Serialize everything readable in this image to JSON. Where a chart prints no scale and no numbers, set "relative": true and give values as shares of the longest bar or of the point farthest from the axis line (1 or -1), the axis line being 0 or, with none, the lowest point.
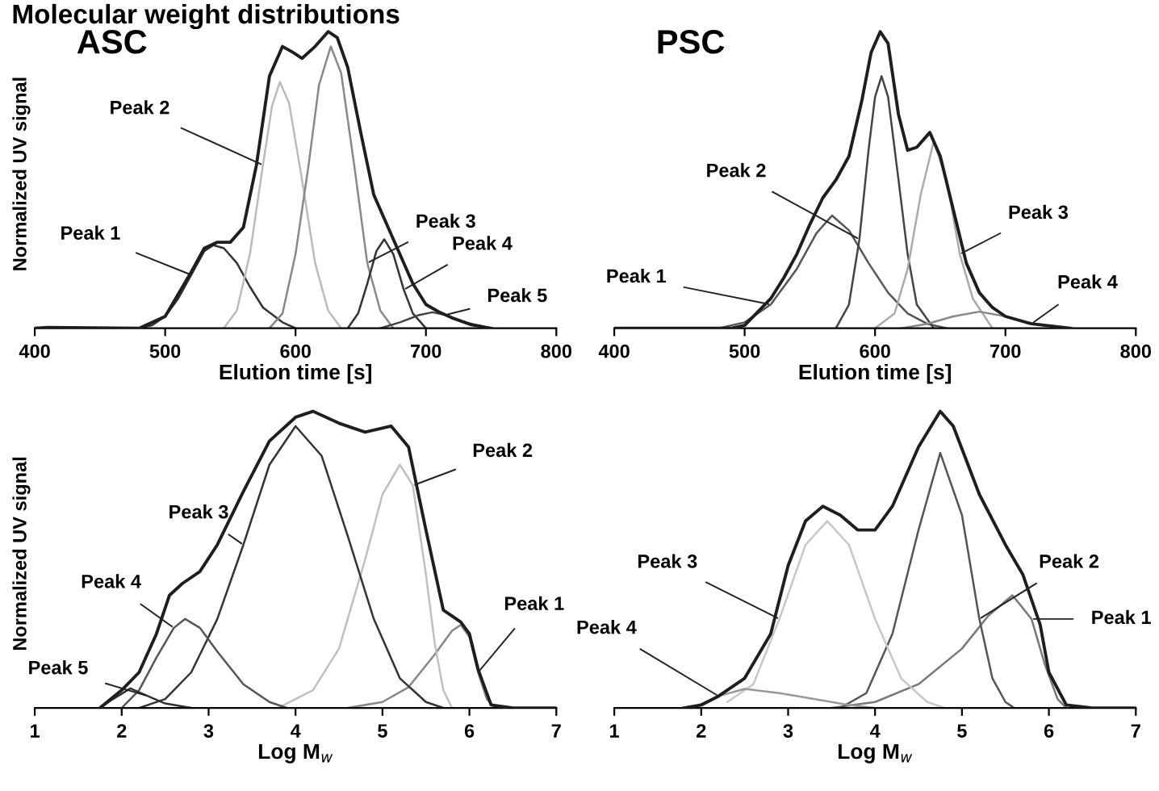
{
  "chart_data": [
    {
      "type": "line",
      "title": "ASC",
      "annotations": [
        "Molecular weight distributions"
      ],
      "xlabel": "Elution time [s]",
      "ylabel": "Normalized UV signal",
      "relative": true,
      "xlim": [
        400,
        800
      ],
      "xticks": [
        400,
        500,
        600,
        700,
        800
      ],
      "marker": "none",
      "line_style": "solid",
      "grid": false,
      "legend": false,
      "series": [
        {
          "color": "#1e1e1e",
          "x": [
            400,
            410,
            480,
            500,
            520,
            530,
            540,
            550,
            560,
            570,
            580,
            590,
            598,
            605,
            615,
            625,
            632,
            640,
            650,
            660,
            668,
            678,
            690,
            700,
            710,
            720,
            735,
            750
          ],
          "values": [
            0,
            0.003,
            0,
            0.04,
            0.19,
            0.27,
            0.29,
            0.29,
            0.34,
            0.55,
            0.85,
            0.95,
            0.93,
            0.91,
            0.95,
            1.0,
            0.98,
            0.88,
            0.66,
            0.45,
            0.37,
            0.27,
            0.15,
            0.08,
            0.055,
            0.035,
            0.012,
            0
          ]
        },
        {
          "name": "Peak 1",
          "color": "#333333",
          "x": [
            480,
            490,
            500,
            510,
            520,
            530,
            537,
            545,
            555,
            565,
            575,
            590,
            600
          ],
          "values": [
            0,
            0.01,
            0.04,
            0.1,
            0.18,
            0.26,
            0.28,
            0.27,
            0.22,
            0.14,
            0.07,
            0.02,
            0
          ]
        },
        {
          "name": "Peak 2",
          "color": "#bbbbbb",
          "x": [
            545,
            555,
            565,
            575,
            582,
            588,
            595,
            605,
            615,
            625,
            635
          ],
          "values": [
            0,
            0.06,
            0.25,
            0.55,
            0.75,
            0.83,
            0.76,
            0.5,
            0.22,
            0.06,
            0
          ]
        },
        {
          "name": "Peak 3",
          "color": "#888888",
          "x": [
            580,
            590,
            600,
            610,
            618,
            627,
            635,
            645,
            655,
            665,
            675
          ],
          "values": [
            0,
            0.05,
            0.25,
            0.55,
            0.82,
            0.95,
            0.86,
            0.55,
            0.22,
            0.06,
            0
          ]
        },
        {
          "name": "Peak 4",
          "color": "#333333",
          "x": [
            640,
            648,
            655,
            662,
            668,
            675,
            683,
            690,
            700
          ],
          "values": [
            0,
            0.05,
            0.15,
            0.26,
            0.3,
            0.25,
            0.13,
            0.05,
            0
          ]
        },
        {
          "name": "Peak 5",
          "color": "#444444",
          "x": [
            665,
            680,
            695,
            705,
            715,
            730,
            750
          ],
          "values": [
            0,
            0.02,
            0.045,
            0.054,
            0.045,
            0.02,
            0
          ]
        }
      ]
    },
    {
      "type": "line",
      "title": "PSC",
      "xlabel": "Elution time [s]",
      "relative": true,
      "xlim": [
        400,
        800
      ],
      "xticks": [
        400,
        500,
        600,
        700,
        800
      ],
      "marker": "none",
      "line_style": "solid",
      "grid": false,
      "legend": false,
      "series": [
        {
          "color": "#1e1e1e",
          "x": [
            400,
            490,
            500,
            520,
            530,
            540,
            550,
            560,
            570,
            580,
            590,
            597,
            604,
            610,
            618,
            625,
            632,
            642,
            650,
            660,
            670,
            680,
            690,
            700,
            720,
            750
          ],
          "values": [
            0,
            0,
            0.01,
            0.1,
            0.17,
            0.25,
            0.35,
            0.44,
            0.5,
            0.58,
            0.77,
            0.93,
            1.0,
            0.96,
            0.72,
            0.6,
            0.61,
            0.66,
            0.58,
            0.4,
            0.22,
            0.12,
            0.07,
            0.04,
            0.015,
            0
          ]
        },
        {
          "name": "Peak 1",
          "color": "#555555",
          "x": [
            480,
            500,
            520,
            540,
            555,
            567,
            580,
            595,
            610,
            625,
            640,
            655
          ],
          "values": [
            0,
            0.02,
            0.08,
            0.2,
            0.32,
            0.38,
            0.33,
            0.22,
            0.12,
            0.05,
            0.015,
            0
          ]
        },
        {
          "name": "Peak 2",
          "color": "#444444",
          "x": [
            570,
            580,
            588,
            595,
            600,
            605,
            610,
            618,
            625,
            632,
            645
          ],
          "values": [
            0,
            0.08,
            0.3,
            0.6,
            0.78,
            0.85,
            0.78,
            0.5,
            0.25,
            0.08,
            0
          ]
        },
        {
          "name": "Peak 3",
          "color": "#aaaaaa",
          "x": [
            600,
            615,
            625,
            635,
            645,
            655,
            665,
            675,
            690
          ],
          "values": [
            0,
            0.05,
            0.2,
            0.45,
            0.63,
            0.5,
            0.25,
            0.1,
            0
          ]
        },
        {
          "name": "Peak 4",
          "color": "#888888",
          "x": [
            620,
            640,
            660,
            680,
            700,
            720,
            750
          ],
          "values": [
            0,
            0.015,
            0.04,
            0.056,
            0.04,
            0.015,
            0
          ]
        }
      ]
    },
    {
      "type": "line",
      "xlabel": "Log M$_{w}$",
      "ylabel": "Normalized UV signal",
      "relative": true,
      "xlim": [
        1,
        7
      ],
      "xticks": [
        1,
        2,
        3,
        4,
        5,
        6,
        7
      ],
      "marker": "none",
      "line_style": "solid",
      "grid": false,
      "legend": false,
      "series": [
        {
          "color": "#1e1e1e",
          "x": [
            1.75,
            2.0,
            2.2,
            2.4,
            2.55,
            2.7,
            2.9,
            3.1,
            3.4,
            3.7,
            4.0,
            4.2,
            4.5,
            4.8,
            5.1,
            5.3,
            5.5,
            5.7,
            5.9,
            6.0,
            6.1,
            6.25,
            6.5,
            7.0
          ],
          "values": [
            0,
            0.06,
            0.12,
            0.25,
            0.38,
            0.42,
            0.46,
            0.55,
            0.73,
            0.9,
            0.98,
            1.0,
            0.96,
            0.93,
            0.95,
            0.88,
            0.6,
            0.33,
            0.29,
            0.25,
            0.13,
            0.01,
            0,
            0
          ]
        },
        {
          "name": "Peak 1",
          "color": "#888888",
          "x": [
            4.6,
            5.0,
            5.3,
            5.6,
            5.8,
            5.9,
            6.0,
            6.1,
            6.2,
            6.3
          ],
          "values": [
            0,
            0.02,
            0.07,
            0.18,
            0.26,
            0.28,
            0.24,
            0.12,
            0.03,
            0
          ]
        },
        {
          "name": "Peak 2",
          "color": "#c0c0c0",
          "x": [
            3.8,
            4.2,
            4.5,
            4.8,
            5.0,
            5.2,
            5.35,
            5.5,
            5.6,
            5.7,
            5.8
          ],
          "values": [
            0,
            0.06,
            0.2,
            0.5,
            0.72,
            0.82,
            0.75,
            0.45,
            0.22,
            0.06,
            0
          ]
        },
        {
          "name": "Peak 3",
          "color": "#333333",
          "x": [
            2.2,
            2.5,
            2.8,
            3.1,
            3.4,
            3.7,
            4.0,
            4.3,
            4.6,
            4.9,
            5.2,
            5.5,
            5.7
          ],
          "values": [
            0,
            0.03,
            0.12,
            0.3,
            0.55,
            0.82,
            0.95,
            0.85,
            0.58,
            0.3,
            0.1,
            0.02,
            0
          ]
        },
        {
          "name": "Peak 4",
          "color": "#555555",
          "x": [
            2.0,
            2.2,
            2.4,
            2.6,
            2.73,
            2.9,
            3.1,
            3.4,
            3.7,
            3.9
          ],
          "values": [
            0,
            0.06,
            0.17,
            0.27,
            0.3,
            0.27,
            0.19,
            0.08,
            0.02,
            0
          ]
        },
        {
          "name": "Peak 5",
          "color": "#333333",
          "x": [
            1.75,
            1.9,
            2.1,
            2.3,
            2.5,
            2.8
          ],
          "values": [
            0,
            0.03,
            0.066,
            0.04,
            0.015,
            0
          ]
        }
      ]
    },
    {
      "type": "line",
      "xlabel": "Log M$_{w}$",
      "relative": true,
      "xlim": [
        1,
        7
      ],
      "xticks": [
        1,
        2,
        3,
        4,
        5,
        6,
        7
      ],
      "marker": "none",
      "line_style": "solid",
      "grid": false,
      "legend": false,
      "series": [
        {
          "color": "#1e1e1e",
          "x": [
            1.8,
            2.0,
            2.2,
            2.5,
            2.8,
            3.0,
            3.2,
            3.4,
            3.6,
            3.8,
            4.0,
            4.2,
            4.5,
            4.75,
            4.9,
            5.2,
            5.5,
            5.7,
            5.9,
            6.0,
            6.2,
            6.5,
            7.0
          ],
          "values": [
            0,
            0.01,
            0.04,
            0.1,
            0.25,
            0.48,
            0.63,
            0.68,
            0.65,
            0.6,
            0.6,
            0.68,
            0.88,
            1.0,
            0.95,
            0.72,
            0.55,
            0.45,
            0.28,
            0.12,
            0.01,
            0,
            0
          ]
        },
        {
          "name": "Peak 1",
          "color": "#777777",
          "x": [
            3.5,
            4.0,
            4.5,
            5.0,
            5.3,
            5.58,
            5.8,
            5.95,
            6.1,
            6.2
          ],
          "values": [
            0,
            0.02,
            0.08,
            0.2,
            0.31,
            0.38,
            0.3,
            0.15,
            0.03,
            0
          ]
        },
        {
          "name": "Peak 2",
          "color": "#555555",
          "x": [
            3.6,
            3.9,
            4.2,
            4.5,
            4.75,
            5.0,
            5.2,
            5.35,
            5.5,
            5.6
          ],
          "values": [
            0,
            0.05,
            0.25,
            0.6,
            0.86,
            0.65,
            0.3,
            0.1,
            0.02,
            0
          ]
        },
        {
          "name": "Peak 3",
          "color": "#c8c8c8",
          "x": [
            2.3,
            2.6,
            2.9,
            3.2,
            3.45,
            3.7,
            4.0,
            4.3,
            4.6,
            4.8
          ],
          "values": [
            0.02,
            0.08,
            0.3,
            0.55,
            0.63,
            0.55,
            0.3,
            0.1,
            0.02,
            0
          ]
        },
        {
          "name": "Peak 4",
          "color": "#999999",
          "x": [
            1.9,
            2.2,
            2.5,
            2.9,
            3.3,
            3.7,
            4.0
          ],
          "values": [
            0,
            0.04,
            0.064,
            0.05,
            0.03,
            0.01,
            0
          ]
        }
      ]
    }
  ]
}
